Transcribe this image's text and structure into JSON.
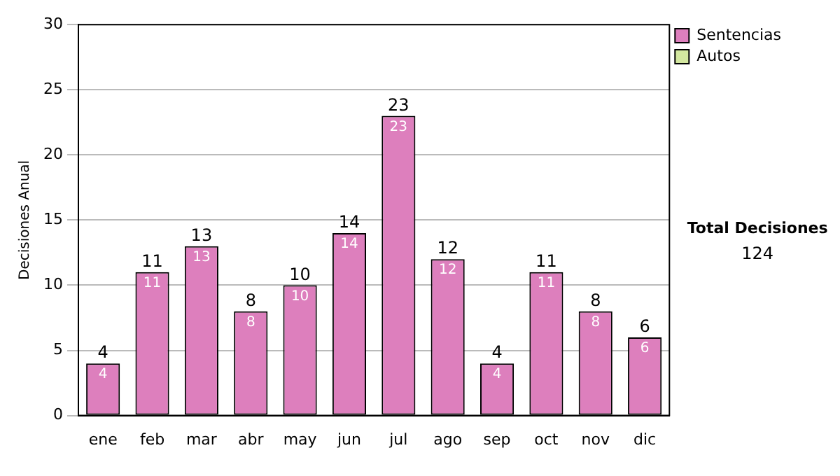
{
  "chart_data": {
    "type": "bar",
    "stacked": true,
    "ylabel": "Decisiones Anual",
    "categories": [
      "ene",
      "feb",
      "mar",
      "abr",
      "may",
      "jun",
      "jul",
      "ago",
      "sep",
      "oct",
      "nov",
      "dic"
    ],
    "series": [
      {
        "name": "Sentencias",
        "color": "#dd7fbd",
        "values": [
          4,
          11,
          13,
          8,
          10,
          14,
          23,
          12,
          4,
          11,
          8,
          6
        ],
        "value_labels": [
          "4",
          "11",
          "13",
          "8",
          "10",
          "14",
          "23",
          "12",
          "4",
          "11",
          "8",
          "6"
        ]
      },
      {
        "name": "Autos",
        "color": "#d4e8a0",
        "values": [
          0,
          0,
          0,
          0,
          0,
          0,
          0,
          0,
          0,
          0,
          0,
          0
        ]
      }
    ],
    "totals": [
      "4",
      "11",
      "13",
      "8",
      "10",
      "14",
      "23",
      "12",
      "4",
      "11",
      "8",
      "6"
    ],
    "ylim": [
      0,
      30
    ],
    "yticks": [
      0,
      5,
      10,
      15,
      20,
      25,
      30
    ],
    "grid": "y",
    "legend": "right",
    "annotations": [
      "Total Decisiones",
      "124"
    ]
  }
}
